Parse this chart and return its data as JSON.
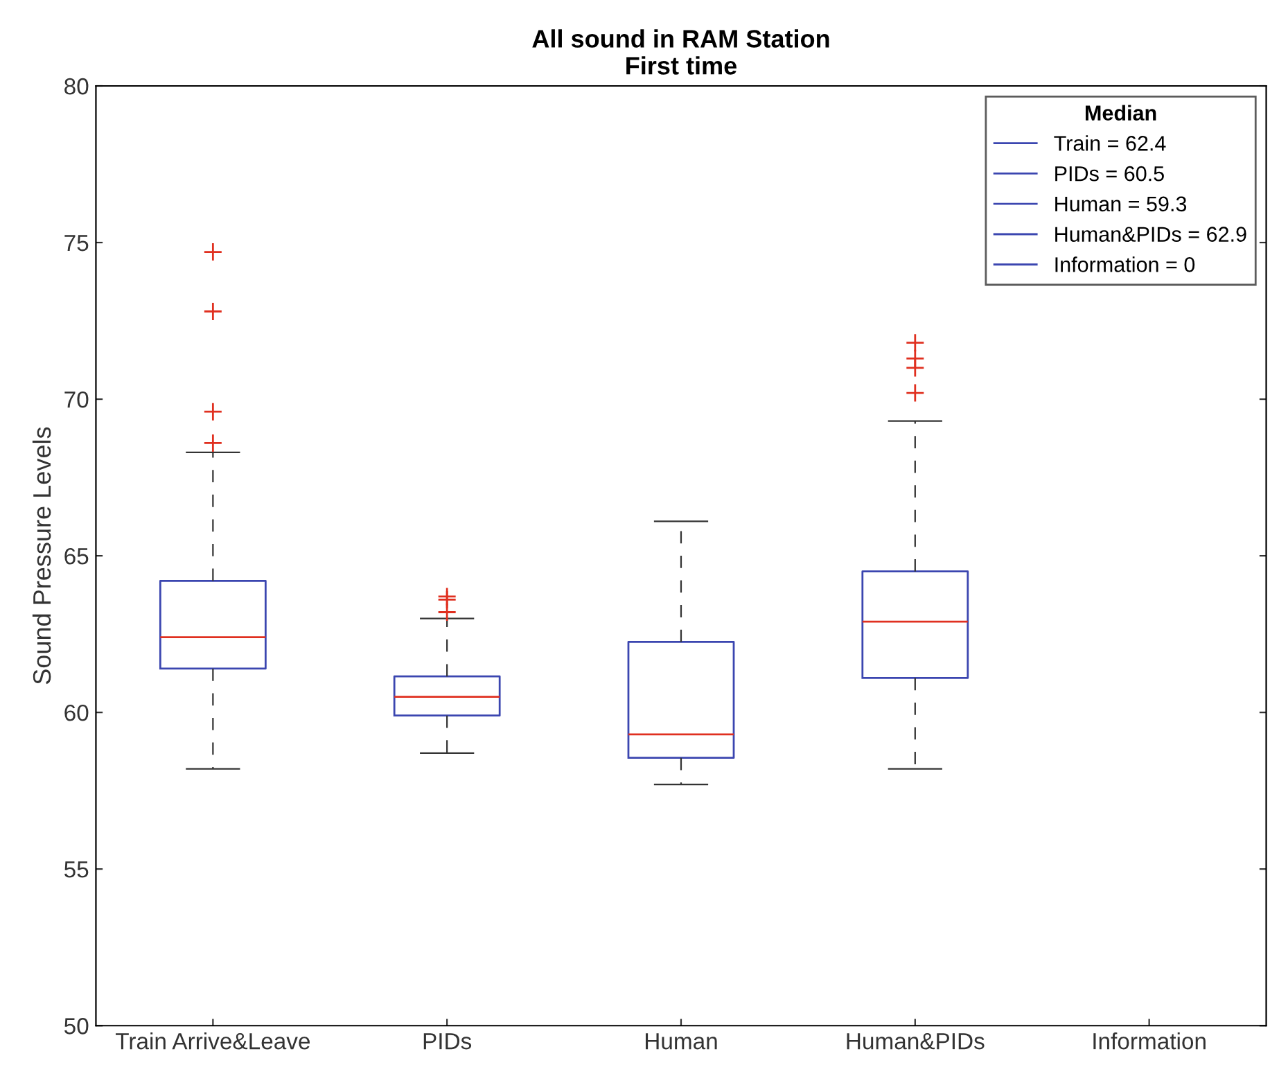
{
  "chart_data": {
    "type": "box",
    "title": "All sound in RAM Station\nFirst time",
    "ylabel": "Sound Pressure Levels",
    "categories": [
      "Train Arrive&Leave",
      "PIDs",
      "Human",
      "Human&PIDs",
      "Information"
    ],
    "series": [
      {
        "color": "#3b46b0",
        "boxes": [
          {
            "low": 58.2,
            "q1": 61.4,
            "median": 62.4,
            "q3": 64.2,
            "high": 68.3,
            "outliers": [
              74.7,
              72.8,
              69.6,
              68.6
            ]
          },
          {
            "low": 58.7,
            "q1": 59.9,
            "median": 60.5,
            "q3": 61.15,
            "high": 63.0,
            "outliers": [
              63.2,
              63.6,
              63.7
            ]
          },
          {
            "low": 57.7,
            "q1": 58.55,
            "median": 59.3,
            "q3": 62.25,
            "high": 66.1
          },
          {
            "low": 58.2,
            "q1": 61.1,
            "median": 62.9,
            "q3": 64.5,
            "high": 69.3,
            "outliers": [
              71.8,
              71.3,
              71.0,
              70.2
            ]
          },
          null
        ]
      }
    ],
    "ylim": [
      50,
      80
    ],
    "yticks": [
      50,
      55,
      60,
      65,
      70,
      75,
      80
    ],
    "grid": false,
    "marker": "cross",
    "legend_title": "Median",
    "annotations": [
      "Train = 62.4",
      "PIDs = 60.5",
      "Human = 59.3",
      "Human&PIDs = 62.9",
      "Information = 0"
    ]
  }
}
